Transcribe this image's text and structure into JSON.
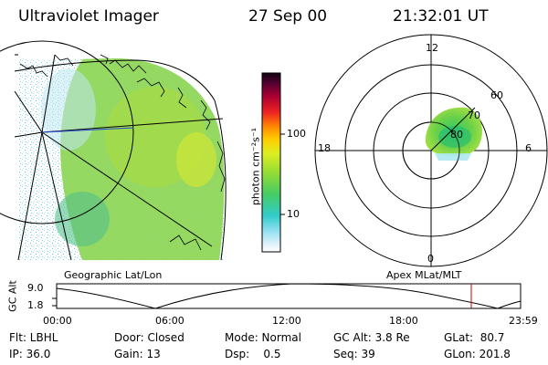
{
  "header": {
    "instrument": "Ultraviolet Imager",
    "date": "27 Sep 00",
    "time": "21:32:01 UT"
  },
  "colorbar": {
    "unit_label": "photon cm⁻²s⁻¹",
    "ticks": [
      "100",
      "10"
    ]
  },
  "geo_panel": {
    "caption": "Geographic Lat/Lon"
  },
  "polar_panel": {
    "caption": "Apex MLat/MLT",
    "mlt_labels": {
      "top": "12",
      "bottom": "0",
      "left": "18",
      "right": "6"
    },
    "lat_labels": [
      "60",
      "70",
      "80"
    ]
  },
  "altitude_plot": {
    "ylabel": "GC Alt",
    "yticks": [
      "9.0",
      "1.8"
    ],
    "xticks": [
      "00:00",
      "06:00",
      "12:00",
      "18:00",
      "23:59"
    ],
    "marker_color": "#cc0000"
  },
  "status": {
    "flt": "Flt: LBHL",
    "door": "Door: Closed",
    "mode": "Mode: Normal",
    "gc_alt": "GC Alt: 3.8 Re",
    "glat": "GLat:  80.7",
    "ip": "IP: 36.0",
    "gain": "Gain: 13",
    "dsp": "Dsp:    0.5",
    "seq": "Seq: 39",
    "glon": "GLon: 201.8"
  }
}
